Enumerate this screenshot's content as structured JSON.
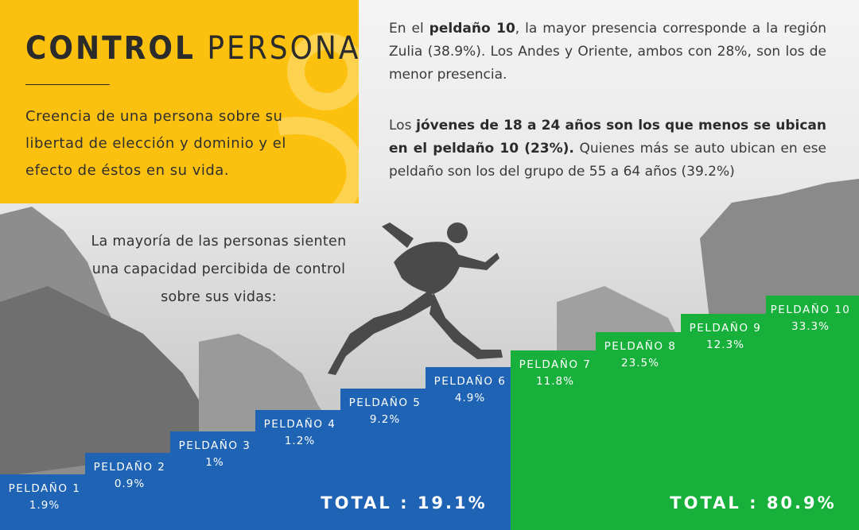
{
  "title": {
    "bold": "CONTROL",
    "light": "PERSONAL"
  },
  "definition": "Creencia de una persona sobre su libertad de elección y dominio y el efecto de éstos en su vida.",
  "paragraph1": {
    "p1": "En el ",
    "b1": "peldaño 10",
    "p2": ", la mayor presencia corresponde a la región Zulia (38.9%). Los Andes y Oriente, ambos con 28%, son los de menor presencia."
  },
  "paragraph2": {
    "p1": "Los ",
    "b1": "jóvenes de 18 a 24 años son los que menos se ubican en el peldaño 10 (23%).",
    "p2": " Quienes más se auto ubican en ese peldaño son los del grupo de 55 a 64 años (39.2%)"
  },
  "lead": "La mayoría de las personas sienten una capacidad percibida de control sobre sus vidas:",
  "colors": {
    "yellow": "#fcc10e",
    "blue": "#1f63b5",
    "green": "#17b03b"
  },
  "chart_data": {
    "type": "bar",
    "categories": [
      "PELDAÑO 1",
      "PELDAÑO 2",
      "PELDAÑO 3",
      "PELDAÑO 4",
      "PELDAÑO 5",
      "PELDAÑO 6",
      "PELDAÑO 7",
      "PELDAÑO 8",
      "PELDAÑO 9",
      "PELDAÑO 10"
    ],
    "values": [
      1.9,
      0.9,
      1.0,
      1.2,
      9.2,
      4.9,
      11.8,
      23.5,
      12.3,
      33.3
    ],
    "value_labels": [
      "1.9%",
      "0.9%",
      "1%",
      "1.2%",
      "9.2%",
      "4.9%",
      "11.8%",
      "23.5%",
      "12.3%",
      "33.3%"
    ],
    "groups": [
      {
        "label": "TOTAL :  19.1%",
        "value": 19.1,
        "from": 0,
        "to": 5,
        "color": "#1f63b5"
      },
      {
        "label": "TOTAL :  80.9%",
        "value": 80.9,
        "from": 6,
        "to": 9,
        "color": "#17b03b"
      }
    ]
  }
}
